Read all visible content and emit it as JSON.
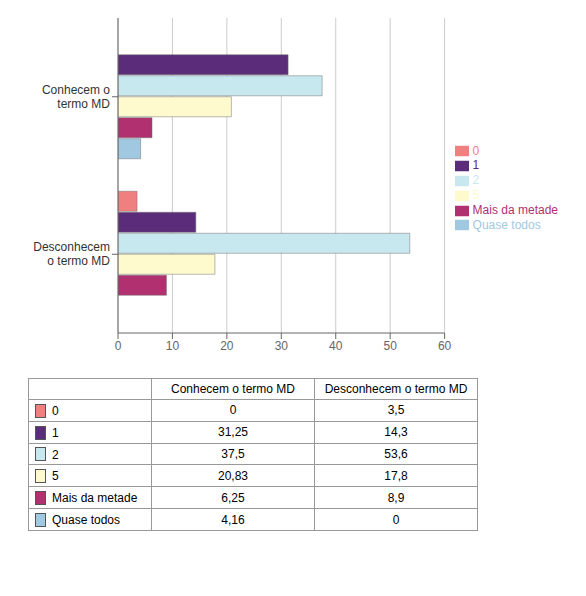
{
  "chart_data": {
    "type": "bar",
    "orientation": "horizontal",
    "categories": [
      "Conhecem o\ntermo MD",
      "Desconhecem\no termo MD"
    ],
    "series": [
      {
        "name": "0",
        "color": "#F08080",
        "values": [
          0,
          3.5
        ]
      },
      {
        "name": "1",
        "color": "#5B2C7A",
        "values": [
          31.25,
          14.3
        ]
      },
      {
        "name": "2",
        "color": "#C8E8F0",
        "values": [
          37.5,
          53.6
        ]
      },
      {
        "name": "5",
        "color": "#FFFACD",
        "values": [
          20.83,
          17.8
        ]
      },
      {
        "name": "Mais da metade",
        "color": "#B03070",
        "values": [
          6.25,
          8.9
        ]
      },
      {
        "name": "Quase todos",
        "color": "#A0C8E0",
        "values": [
          4.16,
          0
        ]
      }
    ],
    "xlim": [
      0,
      60
    ],
    "xticks": [
      0,
      10,
      20,
      30,
      40,
      50,
      60
    ],
    "grid": true,
    "legend": "right",
    "table": {
      "columns": [
        "Conhecem o termo MD",
        "Desconhecem o termo MD"
      ],
      "rows": [
        "0",
        "1",
        "2",
        "5",
        "Mais da metade",
        "Quase todos"
      ],
      "cells": [
        [
          "0",
          "3,5"
        ],
        [
          "31,25",
          "14,3"
        ],
        [
          "37,5",
          "53,6"
        ],
        [
          "20,83",
          "17,8"
        ],
        [
          "6,25",
          "8,9"
        ],
        [
          "4,16",
          "0"
        ]
      ]
    }
  }
}
